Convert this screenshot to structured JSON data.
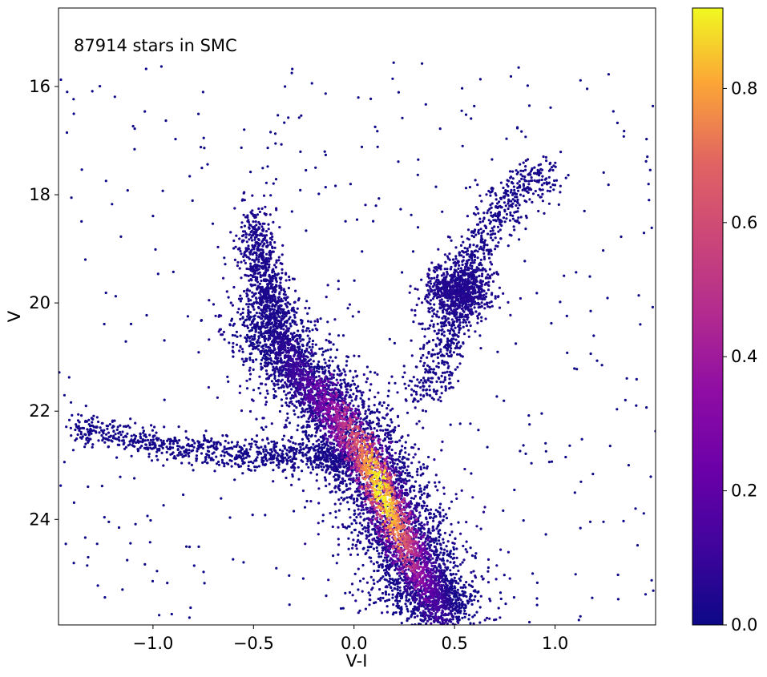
{
  "chart_data": {
    "type": "scatter",
    "subtype": "color-magnitude density scatter",
    "annotation": "87914 stars in SMC",
    "xlabel": "V-I",
    "ylabel": "V",
    "xlim": [
      -1.47,
      1.5
    ],
    "ylim": [
      25.95,
      14.55
    ],
    "y_inverted": true,
    "xticks": [
      -1.0,
      -0.5,
      0.0,
      0.5,
      1.0
    ],
    "xtick_labels": [
      "−1.0",
      "−0.5",
      "0.0",
      "0.5",
      "1.0"
    ],
    "yticks": [
      16,
      18,
      20,
      22,
      24
    ],
    "ytick_labels": [
      "16",
      "18",
      "20",
      "22",
      "24"
    ],
    "grid": false,
    "colorbar": {
      "colormap": "plasma",
      "range": [
        0.0,
        0.92
      ],
      "ticks": [
        0.0,
        0.2,
        0.4,
        0.6,
        0.8
      ],
      "tick_labels": [
        "0.0",
        "0.2",
        "0.4",
        "0.6",
        "0.8"
      ]
    },
    "n_stars_reported": 87914,
    "features": [
      {
        "name": "main sequence",
        "ridge": [
          [
            -0.45,
            20.2
          ],
          [
            -0.3,
            21.2
          ],
          [
            -0.1,
            22.0
          ],
          [
            0.05,
            22.8
          ],
          [
            0.15,
            23.6
          ],
          [
            0.25,
            24.4
          ],
          [
            0.35,
            25.2
          ],
          [
            0.45,
            25.8
          ]
        ],
        "peak_density": 0.92
      },
      {
        "name": "red clump",
        "center": [
          0.52,
          19.8
        ],
        "spread": [
          0.08,
          0.25
        ]
      },
      {
        "name": "red giant branch",
        "ridge": [
          [
            0.35,
            21.8
          ],
          [
            0.45,
            20.8
          ],
          [
            0.52,
            19.8
          ],
          [
            0.6,
            19.0
          ],
          [
            0.75,
            18.2
          ],
          [
            0.95,
            17.5
          ]
        ]
      },
      {
        "name": "blue plume",
        "ridge": [
          [
            -0.5,
            18.6
          ],
          [
            -0.45,
            19.5
          ],
          [
            -0.4,
            20.3
          ]
        ]
      },
      {
        "name": "horizontal branch",
        "ridge": [
          [
            -1.4,
            22.3
          ],
          [
            -1.0,
            22.6
          ],
          [
            -0.6,
            22.8
          ],
          [
            -0.2,
            22.8
          ],
          [
            0.0,
            23.0
          ]
        ]
      }
    ],
    "colors": {
      "min": "#0d0887",
      "mid": "#9c179e",
      "high": "#ed7953",
      "max": "#f0f921"
    }
  }
}
